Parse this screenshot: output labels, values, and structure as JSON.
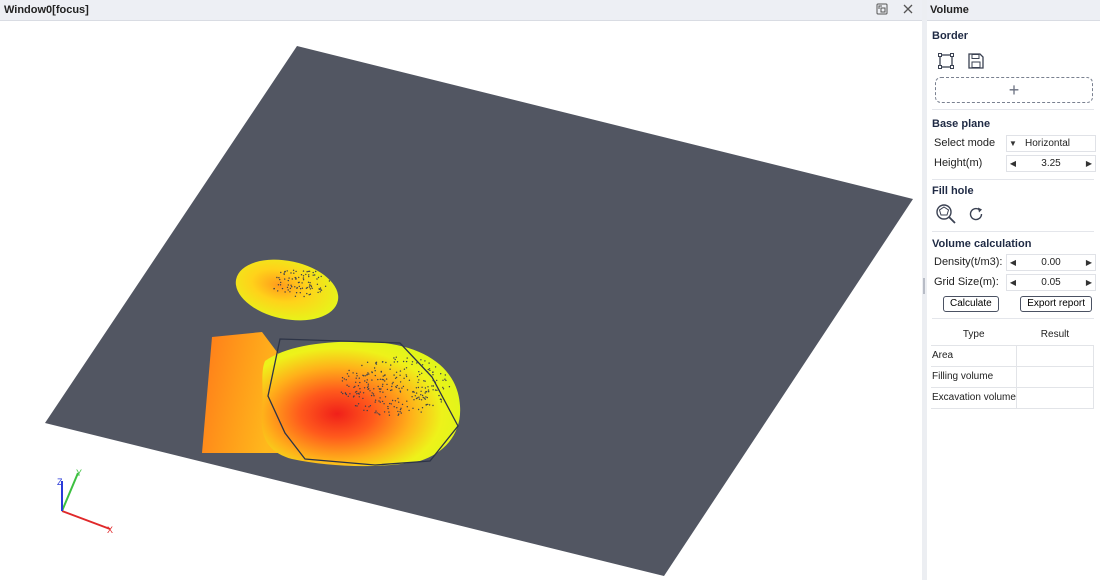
{
  "viewport": {
    "title": "Window0[focus]",
    "restore_icon": "restore-window-icon",
    "close_icon": "close-icon",
    "axes": {
      "x_label": "X",
      "y_label": "Y",
      "z_label": "Z"
    }
  },
  "panel": {
    "title": "Volume",
    "border": {
      "title": "Border",
      "icons": [
        "border-select-icon",
        "save-icon"
      ],
      "add_label": "+"
    },
    "base_plane": {
      "title": "Base plane",
      "select_mode_label": "Select mode",
      "select_mode_value": "Horizontal",
      "height_label": "Height(m)",
      "height_value": "3.25"
    },
    "fill_hole": {
      "title": "Fill hole",
      "icons": [
        "fill-hole-icon",
        "refresh-icon"
      ]
    },
    "volume_calc": {
      "title": "Volume calculation",
      "density_label": "Density(t/m3):",
      "density_value": "0.00",
      "grid_label": "Grid Size(m):",
      "grid_value": "0.05",
      "calculate_label": "Calculate",
      "export_label": "Export report"
    },
    "results": {
      "col_type": "Type",
      "col_result": "Result",
      "rows": [
        {
          "type": "Area",
          "result": ""
        },
        {
          "type": "Filling volume",
          "result": ""
        },
        {
          "type": "Excavation volume",
          "result": ""
        }
      ]
    }
  },
  "colors": {
    "plane": "#525662",
    "heat_high": "#f02a1c",
    "heat_mid": "#ff8a1a",
    "heat_low": "#e8f51a",
    "border_line": "#2d3447"
  }
}
